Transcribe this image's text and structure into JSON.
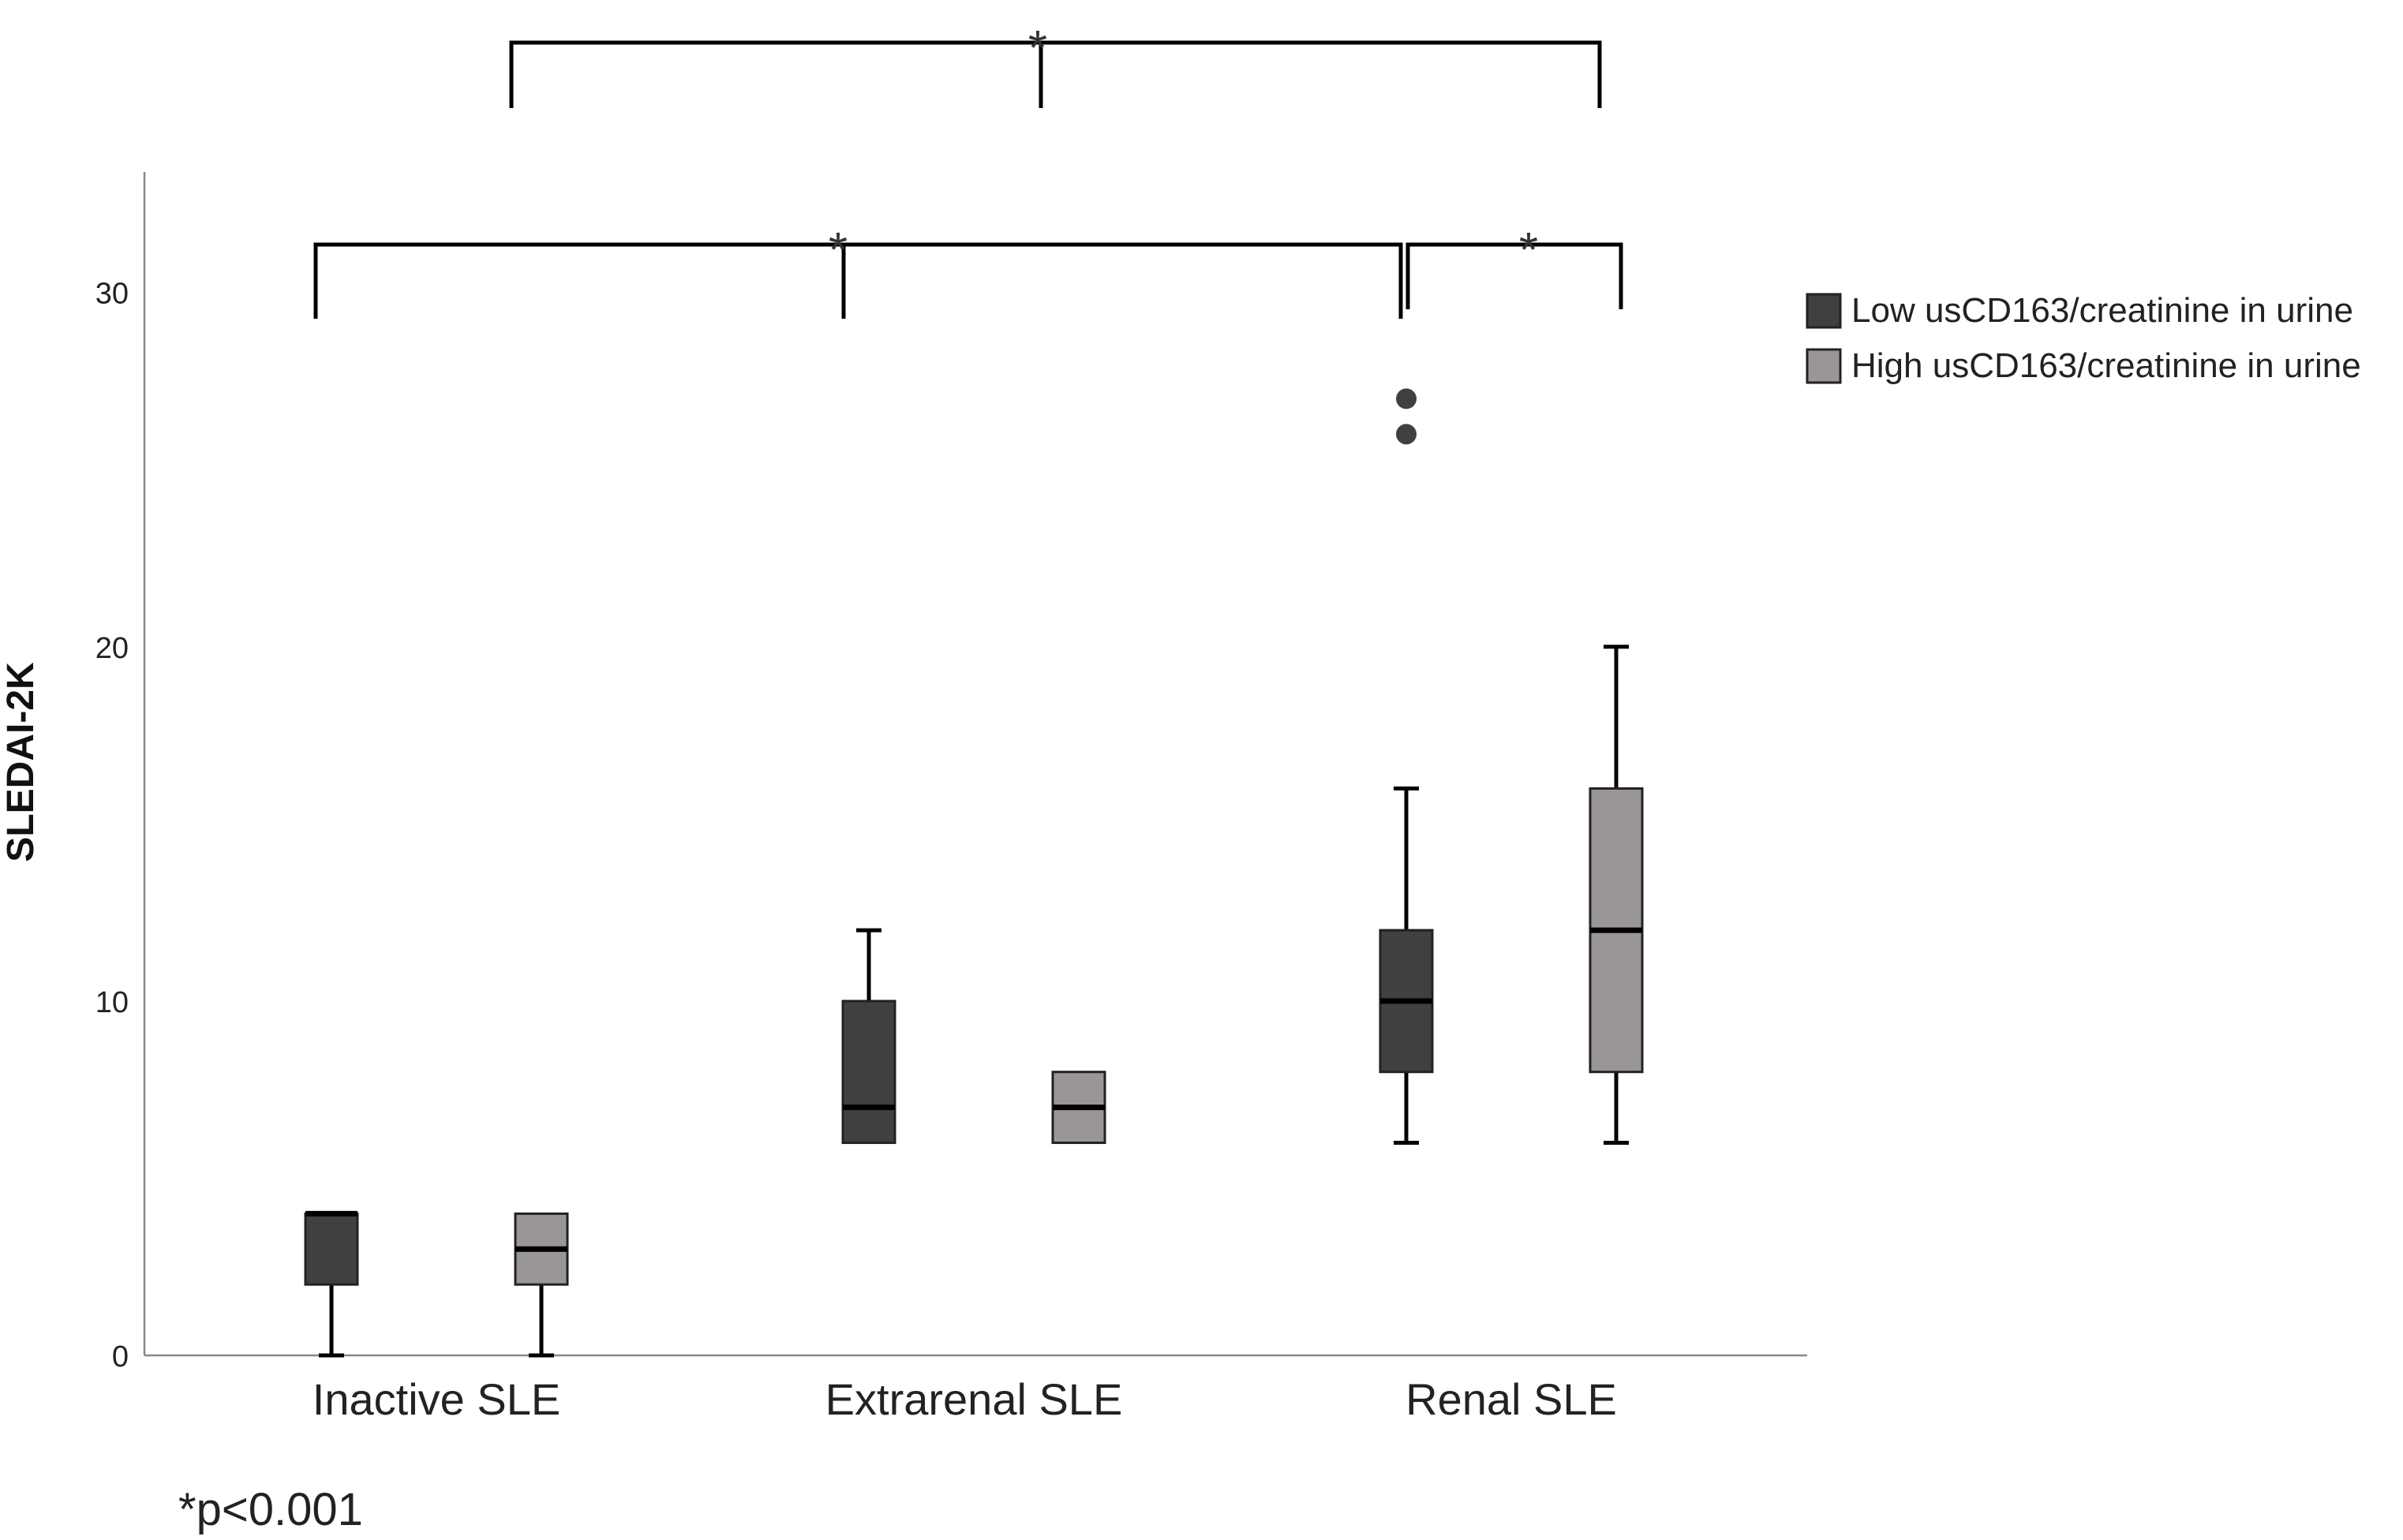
{
  "chart_data": {
    "type": "box",
    "title": "",
    "xlabel": "",
    "ylabel": "SLEDAI-2K",
    "ylim": [
      0,
      33.4
    ],
    "yticks": [
      0,
      10,
      20,
      30
    ],
    "categories": [
      "Inactive SLE",
      "Extrarenal SLE",
      "Renal SLE"
    ],
    "legend_position": "top-right",
    "series": [
      {
        "name": "Low usCD163/creatinine in urine",
        "color": "#404040",
        "boxes": [
          {
            "category": "Inactive SLE",
            "min": 0,
            "q1": 2,
            "median": 4,
            "q3": 4,
            "max": 4,
            "outliers": []
          },
          {
            "category": "Extrarenal SLE",
            "min": 6,
            "q1": 6,
            "median": 7,
            "q3": 10,
            "max": 12,
            "outliers": []
          },
          {
            "category": "Renal SLE",
            "min": 6,
            "q1": 8,
            "median": 10,
            "q3": 12,
            "max": 16,
            "outliers": [
              26,
              27
            ]
          }
        ]
      },
      {
        "name": "High usCD163/creatinine in urine",
        "color": "#9a9696",
        "boxes": [
          {
            "category": "Inactive SLE",
            "min": 0,
            "q1": 2,
            "median": 3,
            "q3": 4,
            "max": 4,
            "outliers": []
          },
          {
            "category": "Extrarenal SLE",
            "min": 6,
            "q1": 6,
            "median": 7,
            "q3": 8,
            "max": 8,
            "outliers": []
          },
          {
            "category": "Renal SLE",
            "min": 6,
            "q1": 8,
            "median": 12,
            "q3": 16,
            "max": 20,
            "outliers": []
          }
        ]
      }
    ],
    "significance": [
      {
        "from": "Inactive SLE / Low usCD163/creatinine in urine",
        "to": "Renal SLE / Low usCD163/creatinine in urine",
        "label": "*"
      },
      {
        "from": "Renal SLE / Low usCD163/creatinine in urine",
        "to": "Renal SLE / High usCD163/creatinine in urine",
        "label": "*"
      },
      {
        "from": "Inactive SLE",
        "to": "Renal SLE",
        "label": "*"
      }
    ],
    "footnote": "*p<0.001"
  }
}
